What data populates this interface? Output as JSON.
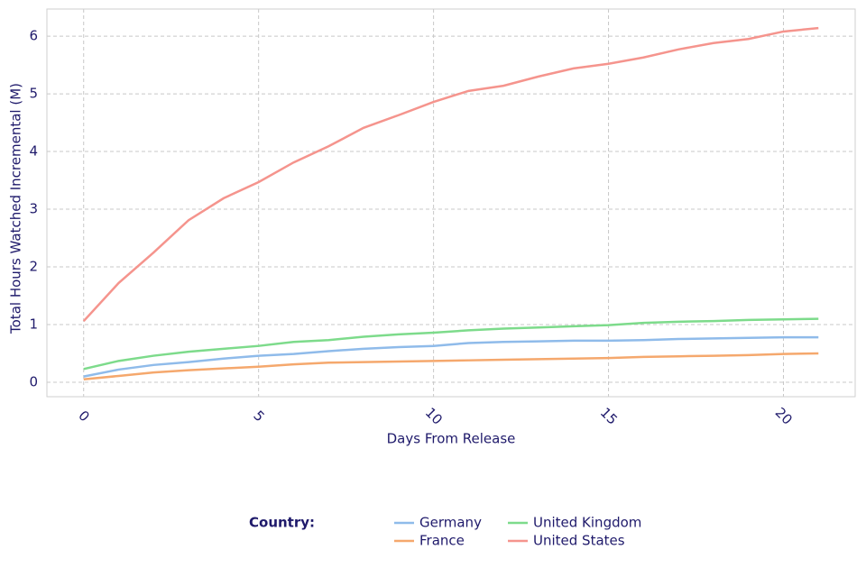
{
  "chart_data": {
    "type": "line",
    "x_label": "Days From Release",
    "y_label": "Total Hours Watched Incremental (M)",
    "legend_title": "Country:",
    "x": [
      0,
      1,
      2,
      3,
      4,
      5,
      6,
      7,
      8,
      9,
      10,
      11,
      12,
      13,
      14,
      15,
      16,
      17,
      18,
      19,
      20,
      21
    ],
    "xlim": [
      -1.05,
      22.05
    ],
    "xticks": [
      0,
      5,
      10,
      15,
      20
    ],
    "ylim": [
      -0.25,
      6.47
    ],
    "yticks": [
      0,
      1,
      2,
      3,
      4,
      5,
      6
    ],
    "grid": true,
    "legend": "bottom",
    "series": [
      {
        "name": "Germany",
        "color": "#8fbbea",
        "values": [
          0.1,
          0.22,
          0.3,
          0.35,
          0.41,
          0.46,
          0.49,
          0.54,
          0.58,
          0.61,
          0.63,
          0.68,
          0.7,
          0.71,
          0.72,
          0.72,
          0.73,
          0.75,
          0.76,
          0.77,
          0.78,
          0.78
        ]
      },
      {
        "name": "France",
        "color": "#f5a86d",
        "values": [
          0.05,
          0.11,
          0.17,
          0.21,
          0.24,
          0.27,
          0.31,
          0.34,
          0.35,
          0.36,
          0.37,
          0.38,
          0.39,
          0.4,
          0.41,
          0.42,
          0.44,
          0.45,
          0.46,
          0.47,
          0.49,
          0.5
        ]
      },
      {
        "name": "United Kingdom",
        "color": "#7ddb8b",
        "values": [
          0.23,
          0.37,
          0.46,
          0.53,
          0.58,
          0.63,
          0.7,
          0.73,
          0.79,
          0.83,
          0.86,
          0.9,
          0.93,
          0.95,
          0.97,
          0.99,
          1.03,
          1.05,
          1.06,
          1.08,
          1.09,
          1.1
        ]
      },
      {
        "name": "United States",
        "color": "#f5948d",
        "values": [
          1.06,
          1.72,
          2.25,
          2.81,
          3.19,
          3.47,
          3.81,
          4.09,
          4.41,
          4.63,
          4.86,
          5.05,
          5.14,
          5.3,
          5.44,
          5.52,
          5.63,
          5.77,
          5.88,
          5.95,
          6.08,
          6.14
        ]
      }
    ]
  }
}
